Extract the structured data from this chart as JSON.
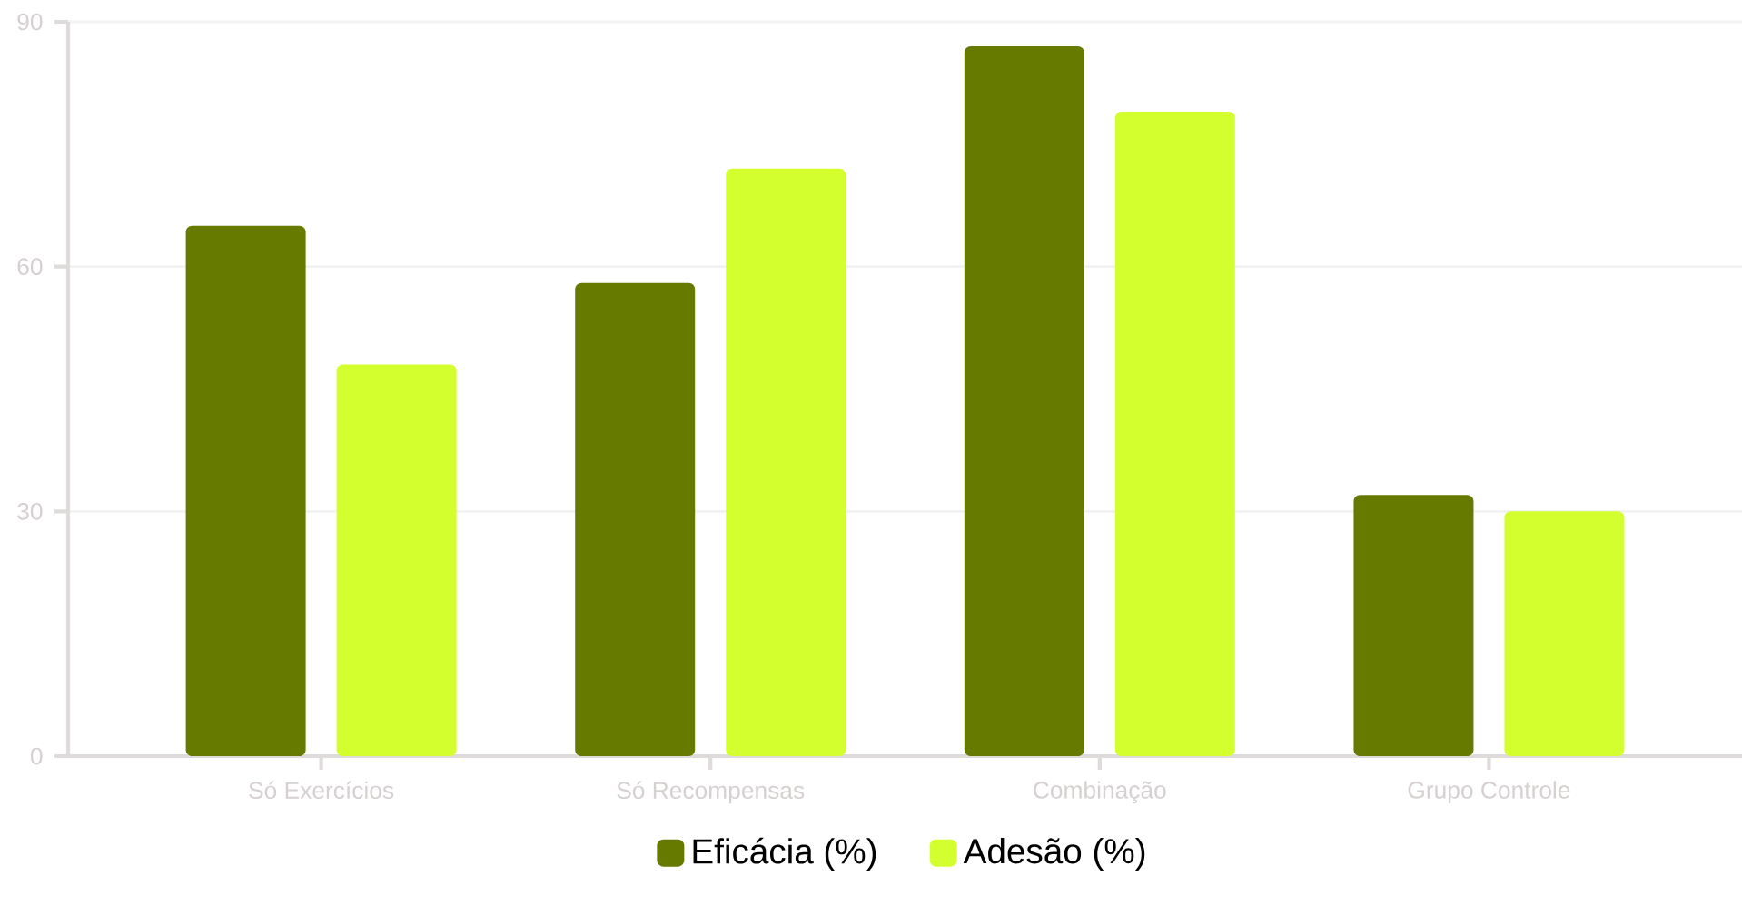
{
  "chart_data": {
    "type": "bar",
    "categories": [
      "Só Exercícios",
      "Só Recompensas",
      "Combinação",
      "Grupo Controle"
    ],
    "series": [
      {
        "name": "Eficácia (%)",
        "color": "#667a00",
        "values": [
          65,
          58,
          87,
          32
        ]
      },
      {
        "name": "Adesão (%)",
        "color": "#d4ff2e",
        "values": [
          48,
          72,
          79,
          30
        ]
      }
    ],
    "ylim": [
      0,
      90
    ],
    "yticks": [
      0,
      30,
      60,
      90
    ],
    "grid": "y",
    "legend": "bottom"
  }
}
